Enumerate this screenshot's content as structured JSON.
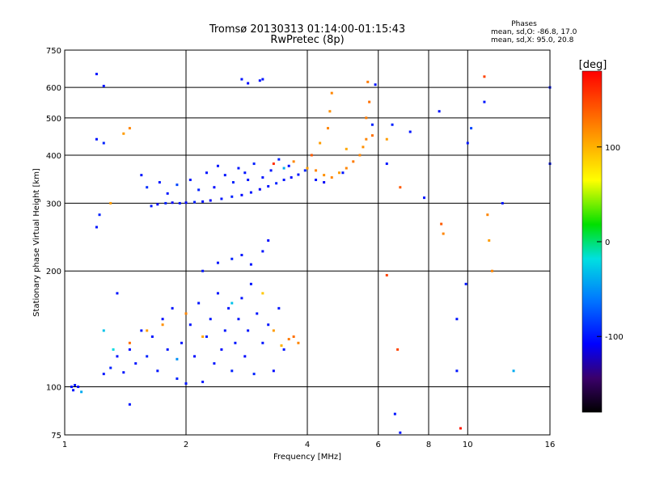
{
  "chart_data": {
    "type": "scatter",
    "title": "Tromsø 20130313 01:14:00-01:15:43",
    "subtitle": "RwPretec (8p)",
    "xlabel": "Frequency [MHz]",
    "ylabel": "Stationary phase Virtual Height [km]",
    "xscale": "log",
    "yscale": "log",
    "xlim": [
      1,
      16
    ],
    "ylim": [
      75,
      750
    ],
    "xticks": [
      1,
      2,
      4,
      6,
      8,
      10,
      16
    ],
    "yticks": [
      75,
      100,
      200,
      300,
      400,
      500,
      600,
      750
    ],
    "xgrid": [
      2,
      4,
      6,
      8,
      10
    ],
    "ygrid": [
      100,
      200,
      300,
      400,
      500,
      600
    ],
    "grid": true,
    "stats": {
      "heading": "Phases",
      "line1": "mean, sd,O: -86.8, 17.0",
      "line2": "mean, sd,X:  95.0, 20.8"
    },
    "colorbar": {
      "label": "[deg]",
      "ticks": [
        100,
        0,
        -100
      ],
      "range": [
        -180,
        180
      ],
      "colormap": "rainbow"
    },
    "series": [
      {
        "points": [
          {
            "x": 1.64,
            "y": 295,
            "p": -100
          },
          {
            "x": 1.7,
            "y": 298,
            "p": -105
          },
          {
            "x": 1.78,
            "y": 300,
            "p": -95
          },
          {
            "x": 1.85,
            "y": 301,
            "p": -110
          },
          {
            "x": 1.93,
            "y": 300,
            "p": -100
          },
          {
            "x": 2.0,
            "y": 301,
            "p": -105
          },
          {
            "x": 2.1,
            "y": 302,
            "p": -95
          },
          {
            "x": 2.2,
            "y": 303,
            "p": -100
          },
          {
            "x": 2.3,
            "y": 305,
            "p": -108
          },
          {
            "x": 2.45,
            "y": 308,
            "p": -100
          },
          {
            "x": 2.6,
            "y": 312,
            "p": -95
          },
          {
            "x": 2.75,
            "y": 315,
            "p": -105
          },
          {
            "x": 2.9,
            "y": 320,
            "p": -100
          },
          {
            "x": 3.05,
            "y": 326,
            "p": -110
          },
          {
            "x": 3.2,
            "y": 332,
            "p": -100
          },
          {
            "x": 3.35,
            "y": 338,
            "p": -95
          },
          {
            "x": 3.5,
            "y": 345,
            "p": -100
          },
          {
            "x": 3.65,
            "y": 350,
            "p": -105
          },
          {
            "x": 3.8,
            "y": 356,
            "p": -100
          },
          {
            "x": 3.95,
            "y": 365,
            "p": -95
          },
          {
            "x": 1.6,
            "y": 330,
            "p": -90
          },
          {
            "x": 1.72,
            "y": 340,
            "p": -100
          },
          {
            "x": 1.8,
            "y": 318,
            "p": -100
          },
          {
            "x": 1.9,
            "y": 335,
            "p": -80
          },
          {
            "x": 2.05,
            "y": 345,
            "p": -100
          },
          {
            "x": 2.15,
            "y": 325,
            "p": -95
          },
          {
            "x": 2.25,
            "y": 360,
            "p": -100
          },
          {
            "x": 2.35,
            "y": 330,
            "p": -105
          },
          {
            "x": 2.5,
            "y": 355,
            "p": -100
          },
          {
            "x": 2.62,
            "y": 340,
            "p": -95
          },
          {
            "x": 2.7,
            "y": 370,
            "p": -100
          },
          {
            "x": 2.85,
            "y": 345,
            "p": -100
          },
          {
            "x": 2.95,
            "y": 380,
            "p": -95
          },
          {
            "x": 3.1,
            "y": 350,
            "p": -100
          },
          {
            "x": 3.25,
            "y": 365,
            "p": -100
          },
          {
            "x": 3.4,
            "y": 390,
            "p": -95
          },
          {
            "x": 3.6,
            "y": 375,
            "p": -105
          },
          {
            "x": 1.55,
            "y": 355,
            "p": -100
          },
          {
            "x": 2.4,
            "y": 375,
            "p": -100
          },
          {
            "x": 2.8,
            "y": 360,
            "p": -100
          },
          {
            "x": 3.5,
            "y": 370,
            "p": -40
          },
          {
            "x": 3.7,
            "y": 385,
            "p": 120
          },
          {
            "x": 3.3,
            "y": 380,
            "p": 160
          },
          {
            "x": 1.04,
            "y": 100,
            "p": -100
          },
          {
            "x": 1.06,
            "y": 101,
            "p": -100
          },
          {
            "x": 1.08,
            "y": 100,
            "p": -105
          },
          {
            "x": 1.05,
            "y": 98,
            "p": -100
          },
          {
            "x": 1.1,
            "y": 97,
            "p": -40
          },
          {
            "x": 1.25,
            "y": 108,
            "p": -100
          },
          {
            "x": 1.3,
            "y": 112,
            "p": -95
          },
          {
            "x": 1.35,
            "y": 120,
            "p": -100
          },
          {
            "x": 1.4,
            "y": 109,
            "p": -100
          },
          {
            "x": 1.45,
            "y": 125,
            "p": -105
          },
          {
            "x": 1.5,
            "y": 115,
            "p": -100
          },
          {
            "x": 1.55,
            "y": 140,
            "p": -100
          },
          {
            "x": 1.6,
            "y": 120,
            "p": -95
          },
          {
            "x": 1.65,
            "y": 135,
            "p": -100
          },
          {
            "x": 1.7,
            "y": 110,
            "p": -100
          },
          {
            "x": 1.75,
            "y": 150,
            "p": -105
          },
          {
            "x": 1.8,
            "y": 125,
            "p": -100
          },
          {
            "x": 1.85,
            "y": 160,
            "p": -100
          },
          {
            "x": 1.9,
            "y": 105,
            "p": -95
          },
          {
            "x": 1.95,
            "y": 130,
            "p": -100
          },
          {
            "x": 2.0,
            "y": 102,
            "p": -100
          },
          {
            "x": 2.05,
            "y": 145,
            "p": -100
          },
          {
            "x": 2.1,
            "y": 120,
            "p": -105
          },
          {
            "x": 2.15,
            "y": 165,
            "p": -100
          },
          {
            "x": 2.2,
            "y": 103,
            "p": -100
          },
          {
            "x": 2.25,
            "y": 135,
            "p": -95
          },
          {
            "x": 2.3,
            "y": 150,
            "p": -100
          },
          {
            "x": 2.35,
            "y": 115,
            "p": -100
          },
          {
            "x": 2.4,
            "y": 175,
            "p": -100
          },
          {
            "x": 2.45,
            "y": 125,
            "p": -105
          },
          {
            "x": 2.5,
            "y": 140,
            "p": -100
          },
          {
            "x": 2.55,
            "y": 160,
            "p": -100
          },
          {
            "x": 2.6,
            "y": 110,
            "p": -95
          },
          {
            "x": 2.65,
            "y": 130,
            "p": -100
          },
          {
            "x": 2.7,
            "y": 150,
            "p": -100
          },
          {
            "x": 2.75,
            "y": 170,
            "p": -100
          },
          {
            "x": 2.8,
            "y": 120,
            "p": -105
          },
          {
            "x": 2.85,
            "y": 140,
            "p": -100
          },
          {
            "x": 2.9,
            "y": 185,
            "p": -100
          },
          {
            "x": 2.95,
            "y": 108,
            "p": -95
          },
          {
            "x": 3.0,
            "y": 155,
            "p": -100
          },
          {
            "x": 3.1,
            "y": 130,
            "p": -100
          },
          {
            "x": 3.2,
            "y": 145,
            "p": -100
          },
          {
            "x": 3.3,
            "y": 110,
            "p": -105
          },
          {
            "x": 3.4,
            "y": 160,
            "p": -100
          },
          {
            "x": 3.5,
            "y": 125,
            "p": -100
          },
          {
            "x": 1.45,
            "y": 130,
            "p": 130
          },
          {
            "x": 1.6,
            "y": 140,
            "p": 110
          },
          {
            "x": 1.75,
            "y": 145,
            "p": 115
          },
          {
            "x": 2.0,
            "y": 155,
            "p": 120
          },
          {
            "x": 2.2,
            "y": 135,
            "p": 105
          },
          {
            "x": 3.1,
            "y": 175,
            "p": 90
          },
          {
            "x": 3.3,
            "y": 140,
            "p": 110
          },
          {
            "x": 3.6,
            "y": 133,
            "p": 125
          },
          {
            "x": 3.7,
            "y": 135,
            "p": 130
          },
          {
            "x": 3.8,
            "y": 130,
            "p": 120
          },
          {
            "x": 3.45,
            "y": 128,
            "p": 100
          },
          {
            "x": 1.32,
            "y": 125,
            "p": -20
          },
          {
            "x": 1.9,
            "y": 118,
            "p": -50
          },
          {
            "x": 2.6,
            "y": 165,
            "p": -30
          },
          {
            "x": 2.2,
            "y": 200,
            "p": -100
          },
          {
            "x": 2.4,
            "y": 210,
            "p": -100
          },
          {
            "x": 2.6,
            "y": 215,
            "p": -95
          },
          {
            "x": 2.75,
            "y": 220,
            "p": -100
          },
          {
            "x": 2.9,
            "y": 208,
            "p": -100
          },
          {
            "x": 3.1,
            "y": 225,
            "p": -100
          },
          {
            "x": 3.2,
            "y": 240,
            "p": -105
          },
          {
            "x": 4.0,
            "y": 370,
            "p": 110
          },
          {
            "x": 4.2,
            "y": 365,
            "p": 120
          },
          {
            "x": 4.4,
            "y": 355,
            "p": 115
          },
          {
            "x": 4.6,
            "y": 350,
            "p": 120
          },
          {
            "x": 4.8,
            "y": 360,
            "p": 110
          },
          {
            "x": 5.0,
            "y": 370,
            "p": 120
          },
          {
            "x": 5.2,
            "y": 385,
            "p": 125
          },
          {
            "x": 5.4,
            "y": 400,
            "p": 120
          },
          {
            "x": 5.5,
            "y": 420,
            "p": 115
          },
          {
            "x": 5.6,
            "y": 440,
            "p": 120
          },
          {
            "x": 4.3,
            "y": 430,
            "p": 110
          },
          {
            "x": 4.5,
            "y": 470,
            "p": 120
          },
          {
            "x": 4.55,
            "y": 520,
            "p": 115
          },
          {
            "x": 4.6,
            "y": 580,
            "p": 120
          },
          {
            "x": 5.6,
            "y": 500,
            "p": 125
          },
          {
            "x": 5.7,
            "y": 550,
            "p": 130
          },
          {
            "x": 5.65,
            "y": 620,
            "p": 125
          },
          {
            "x": 5.8,
            "y": 450,
            "p": 130
          },
          {
            "x": 4.1,
            "y": 400,
            "p": 140
          },
          {
            "x": 5.0,
            "y": 415,
            "p": 105
          },
          {
            "x": 4.2,
            "y": 345,
            "p": -100
          },
          {
            "x": 4.4,
            "y": 340,
            "p": -110
          },
          {
            "x": 4.9,
            "y": 360,
            "p": -100
          },
          {
            "x": 5.8,
            "y": 480,
            "p": -95
          },
          {
            "x": 5.9,
            "y": 610,
            "p": -100
          },
          {
            "x": 2.75,
            "y": 630,
            "p": -100
          },
          {
            "x": 2.85,
            "y": 615,
            "p": -105
          },
          {
            "x": 3.05,
            "y": 625,
            "p": -100
          },
          {
            "x": 3.1,
            "y": 630,
            "p": -100
          },
          {
            "x": 1.2,
            "y": 440,
            "p": -100
          },
          {
            "x": 1.25,
            "y": 430,
            "p": -95
          },
          {
            "x": 1.4,
            "y": 455,
            "p": 110
          },
          {
            "x": 1.45,
            "y": 470,
            "p": 120
          },
          {
            "x": 1.2,
            "y": 650,
            "p": -100
          },
          {
            "x": 1.25,
            "y": 605,
            "p": -100
          },
          {
            "x": 1.2,
            "y": 260,
            "p": -100
          },
          {
            "x": 1.22,
            "y": 280,
            "p": -95
          },
          {
            "x": 1.3,
            "y": 300,
            "p": 110
          },
          {
            "x": 1.35,
            "y": 175,
            "p": -100
          },
          {
            "x": 1.25,
            "y": 140,
            "p": -30
          },
          {
            "x": 1.45,
            "y": 90,
            "p": -100
          },
          {
            "x": 6.3,
            "y": 440,
            "p": 110
          },
          {
            "x": 6.5,
            "y": 480,
            "p": -95
          },
          {
            "x": 6.8,
            "y": 330,
            "p": 140
          },
          {
            "x": 6.3,
            "y": 380,
            "p": -100
          },
          {
            "x": 7.2,
            "y": 460,
            "p": -100
          },
          {
            "x": 6.7,
            "y": 125,
            "p": 150
          },
          {
            "x": 6.3,
            "y": 195,
            "p": 150
          },
          {
            "x": 6.8,
            "y": 76,
            "p": -100
          },
          {
            "x": 6.6,
            "y": 85,
            "p": -100
          },
          {
            "x": 8.6,
            "y": 265,
            "p": 140
          },
          {
            "x": 8.7,
            "y": 250,
            "p": 120
          },
          {
            "x": 9.4,
            "y": 110,
            "p": -100
          },
          {
            "x": 9.6,
            "y": 78,
            "p": 170
          },
          {
            "x": 9.9,
            "y": 185,
            "p": -100
          },
          {
            "x": 9.4,
            "y": 150,
            "p": -100
          },
          {
            "x": 10.0,
            "y": 430,
            "p": -100
          },
          {
            "x": 10.2,
            "y": 470,
            "p": -80
          },
          {
            "x": 11.0,
            "y": 640,
            "p": 150
          },
          {
            "x": 11.0,
            "y": 550,
            "p": -100
          },
          {
            "x": 11.2,
            "y": 280,
            "p": 120
          },
          {
            "x": 11.3,
            "y": 240,
            "p": 110
          },
          {
            "x": 11.5,
            "y": 200,
            "p": 120
          },
          {
            "x": 13.0,
            "y": 110,
            "p": -40
          },
          {
            "x": 12.2,
            "y": 300,
            "p": -100
          },
          {
            "x": 16.0,
            "y": 600,
            "p": -100
          },
          {
            "x": 16.0,
            "y": 380,
            "p": -100
          },
          {
            "x": 7.8,
            "y": 310,
            "p": -100
          },
          {
            "x": 8.5,
            "y": 520,
            "p": -100
          }
        ]
      }
    ]
  }
}
